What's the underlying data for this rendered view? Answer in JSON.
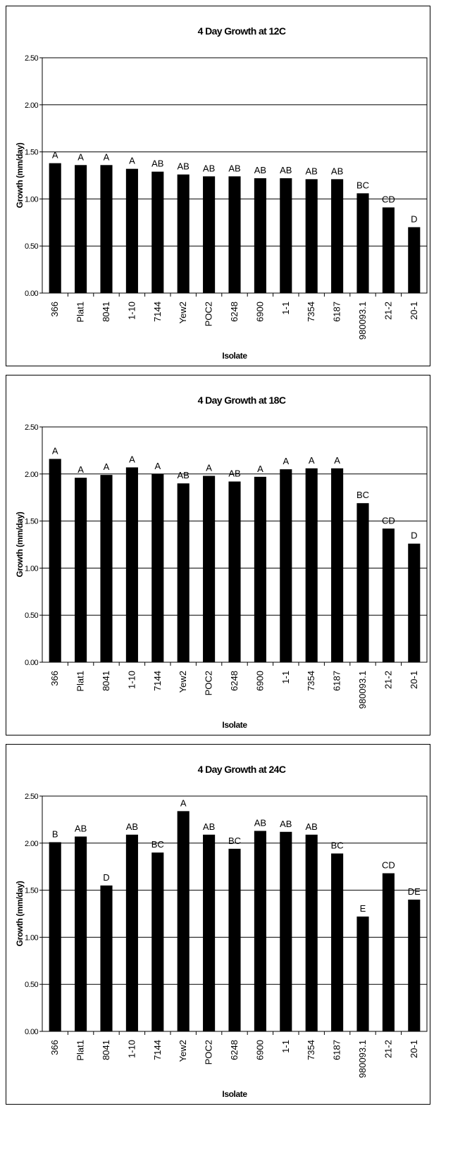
{
  "chart_data": [
    {
      "type": "bar",
      "title": "4 Day Growth at 12C",
      "xlabel": "Isolate",
      "ylabel": "Growth (mm/day)",
      "ylim": [
        0,
        2.5
      ],
      "yticks": [
        "0.00",
        "0.50",
        "1.00",
        "1.50",
        "2.00",
        "2.50"
      ],
      "grid": true,
      "categories": [
        "366",
        "Plat1",
        "8041",
        "1-10",
        "7144",
        "Yew2",
        "POC2",
        "6248",
        "6900",
        "1-1",
        "7354",
        "6187",
        "980093.1",
        "21-2",
        "20-1"
      ],
      "values": [
        1.38,
        1.36,
        1.36,
        1.32,
        1.29,
        1.26,
        1.24,
        1.24,
        1.22,
        1.22,
        1.21,
        1.21,
        1.06,
        0.91,
        0.7
      ],
      "labels": [
        "A",
        "A",
        "A",
        "A",
        "AB",
        "AB",
        "AB",
        "AB",
        "AB",
        "AB",
        "AB",
        "AB",
        "BC",
        "CD",
        "D"
      ],
      "bar_color": "#000000"
    },
    {
      "type": "bar",
      "title": "4 Day Growth at 18C",
      "xlabel": "Isolate",
      "ylabel": "Growth (mm/day)",
      "ylim": [
        0,
        2.5
      ],
      "yticks": [
        "0.00",
        "0.50",
        "1.00",
        "1.50",
        "2.00",
        "2.50"
      ],
      "grid": true,
      "categories": [
        "366",
        "Plat1",
        "8041",
        "1-10",
        "7144",
        "Yew2",
        "POC2",
        "6248",
        "6900",
        "1-1",
        "7354",
        "6187",
        "980093.1",
        "21-2",
        "20-1"
      ],
      "values": [
        2.16,
        1.96,
        1.99,
        2.07,
        2.0,
        1.9,
        1.98,
        1.92,
        1.97,
        2.05,
        2.06,
        2.06,
        1.69,
        1.42,
        1.26
      ],
      "labels": [
        "A",
        "A",
        "A",
        "A",
        "A",
        "AB",
        "A",
        "AB",
        "A",
        "A",
        "A",
        "A",
        "BC",
        "CD",
        "D"
      ],
      "bar_color": "#000000"
    },
    {
      "type": "bar",
      "title": "4 Day Growth at 24C",
      "xlabel": "Isolate",
      "ylabel": "Growth (mm/day)",
      "ylim": [
        0,
        2.5
      ],
      "yticks": [
        "0.00",
        "0.50",
        "1.00",
        "1.50",
        "2.00",
        "2.50"
      ],
      "grid": true,
      "categories": [
        "366",
        "Plat1",
        "8041",
        "1-10",
        "7144",
        "Yew2",
        "POC2",
        "6248",
        "6900",
        "1-1",
        "7354",
        "6187",
        "980093.1",
        "21-2",
        "20-1"
      ],
      "values": [
        2.01,
        2.07,
        1.55,
        2.09,
        1.9,
        2.34,
        2.09,
        1.94,
        2.13,
        2.12,
        2.09,
        1.89,
        1.22,
        1.68,
        1.4
      ],
      "labels": [
        "B",
        "AB",
        "D",
        "AB",
        "BC",
        "A",
        "AB",
        "BC",
        "AB",
        "AB",
        "AB",
        "BC",
        "E",
        "CD",
        "DE"
      ],
      "bar_color": "#000000"
    }
  ]
}
